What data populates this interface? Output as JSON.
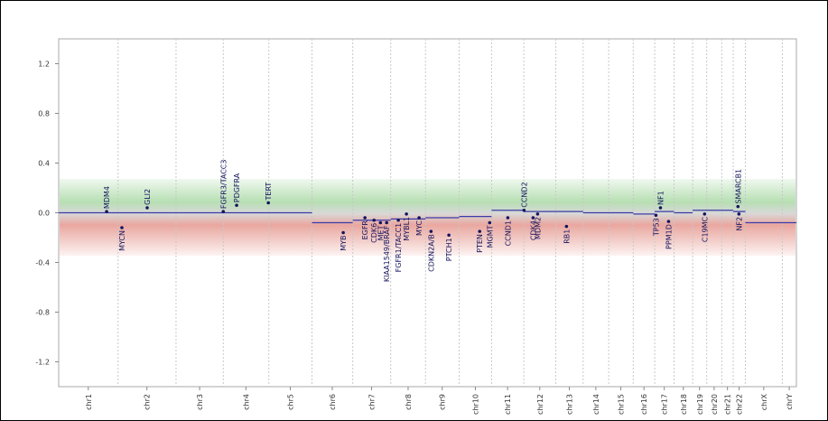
{
  "chart_data": {
    "type": "scatter",
    "xlim": [
      0,
      3093
    ],
    "xticks": [
      {
        "value": 124,
        "label": "chr1"
      },
      {
        "value": 370,
        "label": "chr2"
      },
      {
        "value": 591,
        "label": "chr3"
      },
      {
        "value": 785,
        "label": "chr4"
      },
      {
        "value": 971,
        "label": "chr5"
      },
      {
        "value": 1147,
        "label": "chr6"
      },
      {
        "value": 1312,
        "label": "chr7"
      },
      {
        "value": 1465,
        "label": "chr8"
      },
      {
        "value": 1608,
        "label": "chr9"
      },
      {
        "value": 1747,
        "label": "chr10"
      },
      {
        "value": 1882,
        "label": "chr11"
      },
      {
        "value": 2017,
        "label": "chr12"
      },
      {
        "value": 2141,
        "label": "chr13"
      },
      {
        "value": 2252,
        "label": "chr14"
      },
      {
        "value": 2357,
        "label": "chr15"
      },
      {
        "value": 2454,
        "label": "chr16"
      },
      {
        "value": 2539,
        "label": "chr17"
      },
      {
        "value": 2619,
        "label": "chr18"
      },
      {
        "value": 2687,
        "label": "chr19"
      },
      {
        "value": 2748,
        "label": "chr20"
      },
      {
        "value": 2804,
        "label": "chr21"
      },
      {
        "value": 2853,
        "label": "chr22"
      },
      {
        "value": 2956,
        "label": "chrX"
      },
      {
        "value": 3063,
        "label": "chrY"
      }
    ],
    "xgrid": [
      249,
      492,
      690,
      881,
      1062,
      1233,
      1392,
      1538,
      1679,
      1815,
      1950,
      2084,
      2199,
      2306,
      2409,
      2499,
      2580,
      2658,
      2717,
      2780,
      2828,
      2879,
      3034
    ],
    "ylim": [
      -1.4,
      1.4
    ],
    "yticks": [
      1.2,
      0.8,
      0.4,
      {
        "value": 0,
        "label": "0.0"
      },
      -0.4,
      -0.8,
      -1.2
    ],
    "segment_color": "#3b3ba6",
    "point_color": "#14145e",
    "segments": [
      {
        "x": [
          0,
          1062
        ],
        "y": 0.0
      },
      {
        "x": [
          1062,
          1233
        ],
        "y": -0.08
      },
      {
        "x": [
          1233,
          1392
        ],
        "y": -0.06
      },
      {
        "x": [
          1392,
          1538
        ],
        "y": -0.05
      },
      {
        "x": [
          1538,
          1679
        ],
        "y": -0.04
      },
      {
        "x": [
          1679,
          1815
        ],
        "y": -0.03
      },
      {
        "x": [
          1815,
          1950
        ],
        "y": 0.02
      },
      {
        "x": [
          1950,
          2084
        ],
        "y": 0.01
      },
      {
        "x": [
          2084,
          2199
        ],
        "y": 0.01
      },
      {
        "x": [
          2199,
          2409
        ],
        "y": 0.0
      },
      {
        "x": [
          2409,
          2499
        ],
        "y": -0.01
      },
      {
        "x": [
          2499,
          2580
        ],
        "y": 0.01
      },
      {
        "x": [
          2580,
          2658
        ],
        "y": 0.0
      },
      {
        "x": [
          2658,
          2828
        ],
        "y": 0.02
      },
      {
        "x": [
          2828,
          2879
        ],
        "y": 0.01
      },
      {
        "x": [
          2879,
          3093
        ],
        "y": -0.08
      }
    ],
    "genes": [
      {
        "name": "MDM4",
        "x": 201,
        "y": 0.01
      },
      {
        "name": "MYCN",
        "x": 265,
        "y": -0.12
      },
      {
        "name": "GLI2",
        "x": 371,
        "y": 0.04
      },
      {
        "name": "FGFR3/TACC3",
        "x": 690,
        "y": 0.01
      },
      {
        "name": "PDGFRA",
        "x": 746,
        "y": 0.06
      },
      {
        "name": "TERT",
        "x": 879,
        "y": 0.08
      },
      {
        "name": "MYB",
        "x": 1193,
        "y": -0.16
      },
      {
        "name": "EGFR",
        "x": 1284,
        "y": -0.04
      },
      {
        "name": "CDK6",
        "x": 1322,
        "y": -0.06
      },
      {
        "name": "MET",
        "x": 1349,
        "y": -0.08
      },
      {
        "name": "KIAA1549/BRAF",
        "x": 1375,
        "y": -0.08
      },
      {
        "name": "FGFR1/TACC1",
        "x": 1424,
        "y": -0.06
      },
      {
        "name": "MYBL1",
        "x": 1458,
        "y": -0.01
      },
      {
        "name": "MYC",
        "x": 1511,
        "y": -0.04
      },
      {
        "name": "CDKN2A/B",
        "x": 1561,
        "y": -0.15
      },
      {
        "name": "PTCH1",
        "x": 1636,
        "y": -0.18
      },
      {
        "name": "PTEN",
        "x": 1765,
        "y": -0.15
      },
      {
        "name": "MGMT",
        "x": 1807,
        "y": -0.08
      },
      {
        "name": "CCND1",
        "x": 1883,
        "y": -0.04
      },
      {
        "name": "CCND2",
        "x": 1951,
        "y": 0.02
      },
      {
        "name": "CDK4",
        "x": 1989,
        "y": -0.04
      },
      {
        "name": "MDM2",
        "x": 2008,
        "y": -0.01
      },
      {
        "name": "RB1",
        "x": 2129,
        "y": -0.11
      },
      {
        "name": "TP53",
        "x": 2504,
        "y": -0.02
      },
      {
        "name": "NF1",
        "x": 2523,
        "y": 0.04
      },
      {
        "name": "PPM1D",
        "x": 2557,
        "y": -0.07
      },
      {
        "name": "C19MC",
        "x": 2708,
        "y": -0.01
      },
      {
        "name": "SMARCB1",
        "x": 2848,
        "y": 0.05
      },
      {
        "name": "NF2",
        "x": 2852,
        "y": -0.01
      }
    ]
  }
}
